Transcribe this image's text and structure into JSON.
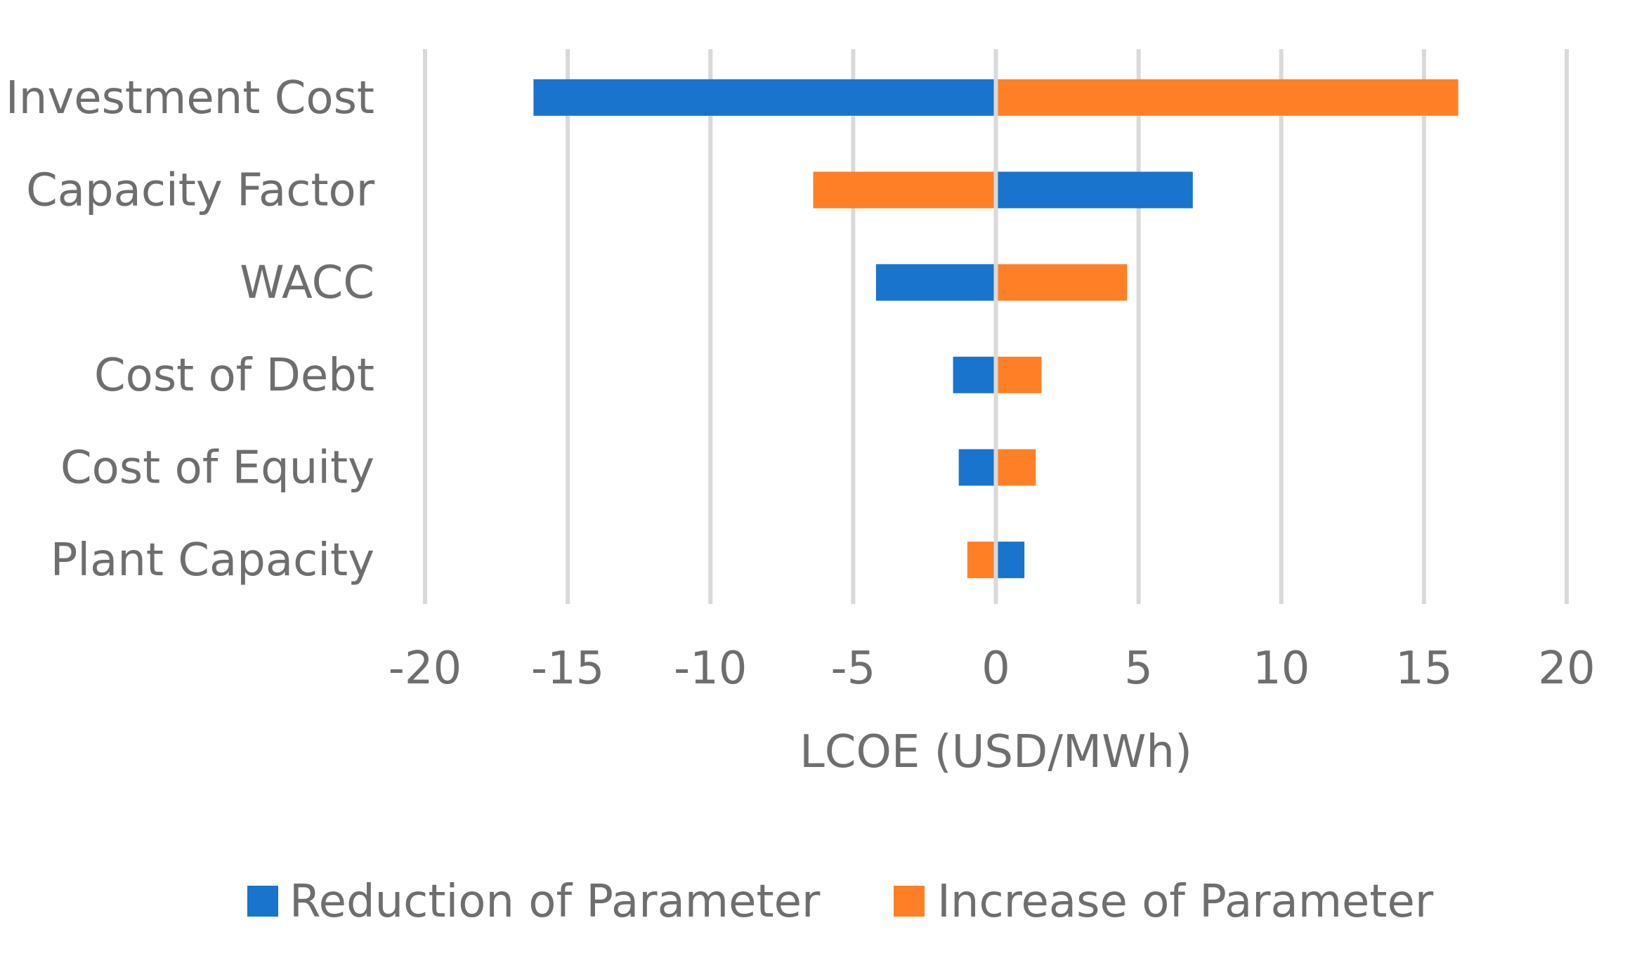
{
  "chart_data": {
    "type": "bar",
    "orientation": "horizontal",
    "stacked": true,
    "title": "",
    "xlabel": "LCOE (USD/MWh)",
    "ylabel": "",
    "xlim": [
      -20,
      20
    ],
    "xticks": [
      -20,
      -15,
      -10,
      -5,
      0,
      5,
      10,
      15,
      20
    ],
    "grid": true,
    "legend_position": "bottom",
    "categories": [
      "Investment Cost",
      "Capacity Factor",
      "WACC",
      "Cost of Debt",
      "Cost of Equity",
      "Plant Capacity"
    ],
    "series": [
      {
        "name": "Reduction of Parameter",
        "color": "#1874CD",
        "values": [
          -16.2,
          6.9,
          -4.2,
          -1.5,
          -1.3,
          1.0
        ]
      },
      {
        "name": "Increase of Parameter",
        "color": "#FF7F27",
        "values": [
          16.2,
          -6.4,
          4.6,
          1.6,
          1.4,
          -1.0
        ]
      }
    ]
  }
}
